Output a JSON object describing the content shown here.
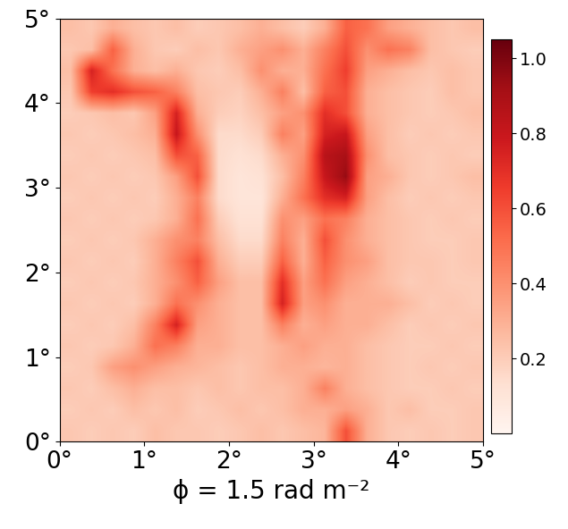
{
  "chart_data": {
    "type": "heatmap",
    "xlabel": "ϕ = 1.5 rad m⁻²",
    "color": "Reds",
    "xlim": [
      0,
      5
    ],
    "ylim": [
      0,
      5
    ],
    "xticks": [
      {
        "value": 0,
        "label": "0°"
      },
      {
        "value": 1,
        "label": "1°"
      },
      {
        "value": 2,
        "label": "2°"
      },
      {
        "value": 3,
        "label": "3°"
      },
      {
        "value": 4,
        "label": "4°"
      },
      {
        "value": 5,
        "label": "5°"
      }
    ],
    "yticks": [
      {
        "value": 0,
        "label": "0°"
      },
      {
        "value": 1,
        "label": "1°"
      },
      {
        "value": 2,
        "label": "2°"
      },
      {
        "value": 3,
        "label": "3°"
      },
      {
        "value": 4,
        "label": "4°"
      },
      {
        "value": 5,
        "label": "5°"
      }
    ],
    "colorbar": {
      "range": [
        0,
        1.05
      ],
      "ticks": [
        0.2,
        0.4,
        0.6,
        0.8,
        {
          "value": 1.0,
          "label": "1.0"
        }
      ]
    },
    "cells": [
      [
        0.25,
        0.22,
        0.3,
        0.25,
        0.22,
        0.25,
        0.2,
        0.22,
        0.25,
        0.3,
        0.25,
        0.2,
        0.3,
        0.55,
        0.5,
        0.35,
        0.3,
        0.25,
        0.22,
        0.25
      ],
      [
        0.22,
        0.25,
        0.55,
        0.3,
        0.22,
        0.2,
        0.25,
        0.22,
        0.3,
        0.35,
        0.4,
        0.3,
        0.45,
        0.6,
        0.4,
        0.5,
        0.45,
        0.25,
        0.22,
        0.2
      ],
      [
        0.25,
        0.75,
        0.5,
        0.3,
        0.25,
        0.3,
        0.22,
        0.2,
        0.25,
        0.4,
        0.3,
        0.3,
        0.5,
        0.65,
        0.35,
        0.3,
        0.25,
        0.22,
        0.25,
        0.22
      ],
      [
        0.22,
        0.65,
        0.7,
        0.6,
        0.55,
        0.45,
        0.25,
        0.22,
        0.2,
        0.3,
        0.45,
        0.25,
        0.55,
        0.6,
        0.3,
        0.25,
        0.22,
        0.2,
        0.25,
        0.22
      ],
      [
        0.2,
        0.22,
        0.25,
        0.22,
        0.35,
        0.75,
        0.3,
        0.2,
        0.18,
        0.25,
        0.35,
        0.4,
        0.7,
        0.6,
        0.3,
        0.25,
        0.22,
        0.2,
        0.22,
        0.25
      ],
      [
        0.22,
        0.2,
        0.22,
        0.25,
        0.3,
        0.8,
        0.4,
        0.15,
        0.15,
        0.2,
        0.45,
        0.35,
        0.75,
        0.8,
        0.35,
        0.25,
        0.2,
        0.22,
        0.2,
        0.22
      ],
      [
        0.2,
        0.22,
        0.2,
        0.22,
        0.25,
        0.6,
        0.55,
        0.15,
        0.12,
        0.15,
        0.3,
        0.4,
        0.85,
        0.9,
        0.4,
        0.25,
        0.22,
        0.2,
        0.22,
        0.2
      ],
      [
        0.22,
        0.2,
        0.22,
        0.2,
        0.22,
        0.35,
        0.6,
        0.15,
        0.1,
        0.12,
        0.25,
        0.45,
        0.8,
        0.95,
        0.35,
        0.3,
        0.22,
        0.2,
        0.22,
        0.25
      ],
      [
        0.2,
        0.22,
        0.2,
        0.22,
        0.2,
        0.3,
        0.45,
        0.15,
        0.1,
        0.1,
        0.3,
        0.5,
        0.7,
        0.75,
        0.35,
        0.25,
        0.2,
        0.22,
        0.2,
        0.22
      ],
      [
        0.22,
        0.2,
        0.22,
        0.2,
        0.22,
        0.3,
        0.5,
        0.2,
        0.12,
        0.12,
        0.4,
        0.35,
        0.5,
        0.45,
        0.3,
        0.25,
        0.22,
        0.2,
        0.22,
        0.2
      ],
      [
        0.2,
        0.22,
        0.2,
        0.22,
        0.3,
        0.4,
        0.45,
        0.25,
        0.15,
        0.15,
        0.45,
        0.3,
        0.6,
        0.4,
        0.3,
        0.25,
        0.22,
        0.2,
        0.2,
        0.22
      ],
      [
        0.22,
        0.2,
        0.22,
        0.2,
        0.3,
        0.45,
        0.6,
        0.3,
        0.2,
        0.2,
        0.55,
        0.3,
        0.55,
        0.4,
        0.35,
        0.25,
        0.22,
        0.22,
        0.2,
        0.22
      ],
      [
        0.2,
        0.22,
        0.2,
        0.22,
        0.3,
        0.4,
        0.55,
        0.35,
        0.25,
        0.25,
        0.7,
        0.35,
        0.5,
        0.35,
        0.3,
        0.25,
        0.2,
        0.22,
        0.2,
        0.2
      ],
      [
        0.22,
        0.2,
        0.22,
        0.2,
        0.3,
        0.5,
        0.4,
        0.3,
        0.25,
        0.25,
        0.75,
        0.35,
        0.4,
        0.3,
        0.3,
        0.3,
        0.25,
        0.2,
        0.22,
        0.2
      ],
      [
        0.2,
        0.22,
        0.2,
        0.25,
        0.45,
        0.75,
        0.35,
        0.3,
        0.25,
        0.25,
        0.45,
        0.3,
        0.35,
        0.3,
        0.3,
        0.25,
        0.2,
        0.22,
        0.2,
        0.22
      ],
      [
        0.22,
        0.2,
        0.22,
        0.3,
        0.5,
        0.45,
        0.3,
        0.3,
        0.25,
        0.25,
        0.3,
        0.35,
        0.3,
        0.3,
        0.25,
        0.22,
        0.2,
        0.2,
        0.22,
        0.2
      ],
      [
        0.2,
        0.22,
        0.35,
        0.4,
        0.35,
        0.3,
        0.28,
        0.25,
        0.22,
        0.25,
        0.3,
        0.3,
        0.28,
        0.3,
        0.25,
        0.22,
        0.2,
        0.22,
        0.2,
        0.22
      ],
      [
        0.22,
        0.2,
        0.25,
        0.3,
        0.25,
        0.25,
        0.22,
        0.25,
        0.22,
        0.25,
        0.25,
        0.3,
        0.45,
        0.3,
        0.25,
        0.22,
        0.2,
        0.2,
        0.22,
        0.2
      ],
      [
        0.2,
        0.22,
        0.2,
        0.25,
        0.22,
        0.25,
        0.2,
        0.22,
        0.25,
        0.22,
        0.25,
        0.3,
        0.3,
        0.35,
        0.3,
        0.22,
        0.25,
        0.2,
        0.2,
        0.22
      ],
      [
        0.22,
        0.2,
        0.22,
        0.2,
        0.25,
        0.22,
        0.22,
        0.2,
        0.22,
        0.25,
        0.22,
        0.25,
        0.28,
        0.6,
        0.3,
        0.22,
        0.2,
        0.22,
        0.2,
        0.22
      ]
    ]
  }
}
